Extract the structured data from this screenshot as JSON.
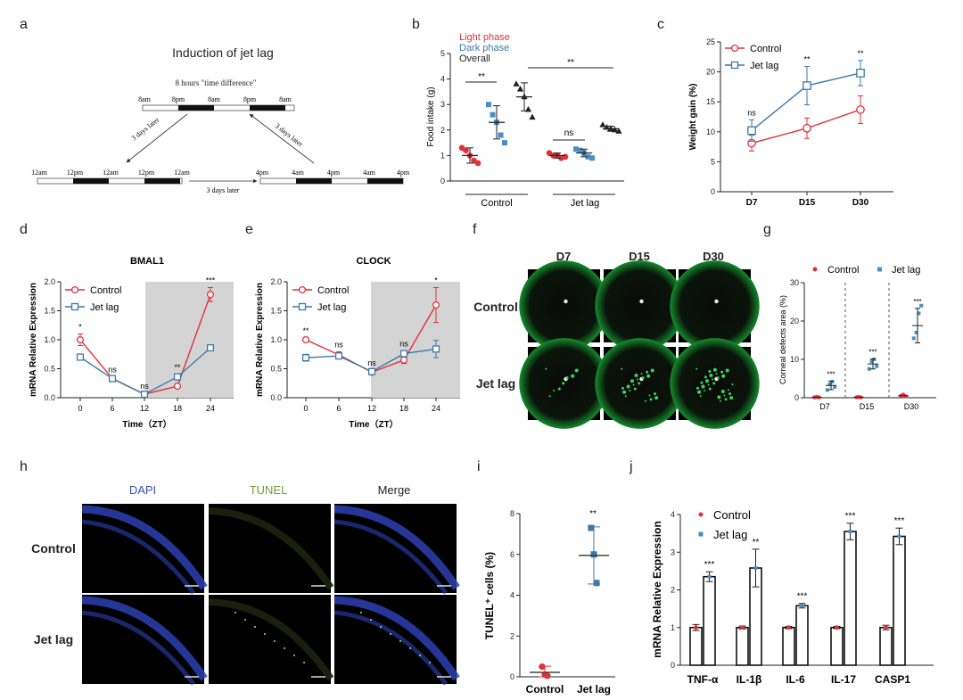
{
  "colors": {
    "control": "#e0303a",
    "jetlag": "#3d79a6",
    "blue_pt": "#4a8fc0",
    "overall": "#222222",
    "shade": "#d4d4d4",
    "dapi": "#3850b8",
    "tunel_green": "#8a9a3a",
    "micro_bg": "#0b0b0b",
    "cornea_green": "#1fa03a"
  },
  "panel_letters": [
    "a",
    "b",
    "c",
    "d",
    "e",
    "f",
    "g",
    "h",
    "i",
    "j"
  ],
  "panel_a": {
    "title": "Induction of jet lag",
    "diff_label": "8 hours \"time difference\"",
    "top_ticks": [
      "8am",
      "8pm",
      "8am",
      "8pm",
      "8am"
    ],
    "left_ticks": [
      "12am",
      "12pm",
      "12am",
      "12pm",
      "12am"
    ],
    "right_ticks": [
      "4pm",
      "4am",
      "4pm",
      "4am",
      "4pm"
    ],
    "later_left": "3 days later",
    "later_right": "3 days later",
    "later_bottom": "3 days later"
  },
  "chart_data": [
    {
      "id": "b",
      "type": "scatter",
      "ylabel": "Food intake (g)",
      "ylim": [
        0,
        5
      ],
      "yticks": [
        "0",
        "1",
        "2",
        "3",
        "4",
        "5"
      ],
      "legend": [
        "Light phase",
        "Dark phase",
        "Overall"
      ],
      "groups": [
        "Control",
        "Jet lag"
      ],
      "series": [
        {
          "name": "Control Light phase",
          "mean": 1.0,
          "sd": 0.3,
          "points": [
            1.3,
            1.2,
            1.0,
            0.8,
            0.7
          ]
        },
        {
          "name": "Control Dark phase",
          "mean": 2.3,
          "sd": 0.65,
          "points": [
            3.0,
            2.6,
            2.3,
            1.8,
            1.5
          ]
        },
        {
          "name": "Control Overall",
          "mean": 3.3,
          "sd": 0.55,
          "points": [
            3.8,
            3.6,
            3.3,
            2.8,
            2.5
          ]
        },
        {
          "name": "Jet lag Light phase",
          "mean": 1.0,
          "sd": 0.1,
          "points": [
            1.1,
            1.0,
            1.0,
            0.9,
            0.95
          ]
        },
        {
          "name": "Jet lag Dark phase",
          "mean": 1.1,
          "sd": 0.15,
          "points": [
            1.25,
            1.2,
            1.1,
            0.95,
            0.9
          ]
        },
        {
          "name": "Jet lag Overall",
          "mean": 2.05,
          "sd": 0.1,
          "points": [
            2.2,
            2.1,
            2.05,
            2.0,
            1.95
          ]
        }
      ],
      "annotations": [
        "**",
        "**",
        "ns"
      ]
    },
    {
      "id": "c",
      "type": "line",
      "ylabel": "Weight gain (%)",
      "ylim": [
        0,
        25
      ],
      "yticks": [
        "0",
        "5",
        "10",
        "15",
        "20",
        "25"
      ],
      "categories": [
        "D7",
        "D15",
        "D30"
      ],
      "series": [
        {
          "name": "Control",
          "values": [
            8.1,
            10.6,
            13.7
          ],
          "sd": [
            1.3,
            1.7,
            2.3
          ]
        },
        {
          "name": "Jet lag",
          "values": [
            10.2,
            17.7,
            19.8
          ],
          "sd": [
            1.8,
            3.2,
            2.1
          ]
        }
      ],
      "annotations": [
        "ns",
        "**",
        "**"
      ]
    },
    {
      "id": "d",
      "type": "line",
      "title": "BMAL1",
      "xlabel": "Time（ZT）",
      "ylabel": "mRNA Relative Expression",
      "ylim": [
        0,
        2.0
      ],
      "yticks": [
        "0.0",
        "0.5",
        "1.0",
        "1.5",
        "2.0"
      ],
      "x": [
        0,
        6,
        12,
        18,
        24
      ],
      "xticks": [
        "0",
        "6",
        "12",
        "18",
        "24"
      ],
      "series": [
        {
          "name": "Control",
          "values": [
            1.0,
            0.33,
            0.06,
            0.2,
            1.78
          ],
          "sd": [
            0.1,
            0.03,
            0.02,
            0.03,
            0.12
          ]
        },
        {
          "name": "Jet lag",
          "values": [
            0.7,
            0.33,
            0.06,
            0.36,
            0.86
          ],
          "sd": [
            0.04,
            0.03,
            0.02,
            0.04,
            0.04
          ]
        }
      ],
      "annotations": [
        "*",
        "ns",
        "ns",
        "**",
        "***"
      ]
    },
    {
      "id": "e",
      "type": "line",
      "title": "CLOCK",
      "xlabel": "Time（ZT）",
      "ylabel": "mRNA Relative Expression",
      "ylim": [
        0,
        2.0
      ],
      "yticks": [
        "0.0",
        "0.5",
        "1.0",
        "1.5",
        "2.0"
      ],
      "x": [
        0,
        6,
        12,
        18,
        24
      ],
      "xticks": [
        "0",
        "6",
        "12",
        "18",
        "24"
      ],
      "series": [
        {
          "name": "Control",
          "values": [
            1.0,
            0.74,
            0.44,
            0.65,
            1.6
          ],
          "sd": [
            0.03,
            0.05,
            0.03,
            0.06,
            0.3
          ]
        },
        {
          "name": "Jet lag",
          "values": [
            0.69,
            0.72,
            0.45,
            0.76,
            0.84
          ],
          "sd": [
            0.06,
            0.05,
            0.03,
            0.05,
            0.15
          ]
        }
      ],
      "annotations": [
        "**",
        "ns",
        "ns",
        "ns",
        "*"
      ]
    },
    {
      "id": "g",
      "type": "scatter",
      "ylabel": "Corneal defects area (%)",
      "ylim": [
        0,
        30
      ],
      "yticks": [
        "0",
        "10",
        "20",
        "30"
      ],
      "categories": [
        "D7",
        "D15",
        "D30"
      ],
      "series": [
        {
          "name": "Control",
          "means": [
            0.1,
            0.1,
            0.5
          ],
          "points": [
            [
              0.1,
              0.2,
              0.1
            ],
            [
              0.1,
              0.2,
              0.1
            ],
            [
              0.5,
              0.8,
              0.4
            ]
          ]
        },
        {
          "name": "Jet lag",
          "means": [
            3.2,
            8.8,
            18.8
          ],
          "sd": [
            1.1,
            1.3,
            4.5
          ],
          "points": [
            [
              2.0,
              3.5,
              4.2,
              2.8
            ],
            [
              7.5,
              9.5,
              10.0,
              8.2
            ],
            [
              15.5,
              17.0,
              22.0,
              24.0
            ]
          ]
        }
      ],
      "annotations": [
        "***",
        "***",
        "***"
      ]
    },
    {
      "id": "i",
      "type": "scatter",
      "ylabel": "TUNEL⁺ cells (%)",
      "ylim": [
        0,
        8
      ],
      "yticks": [
        "0",
        "2",
        "4",
        "6",
        "8"
      ],
      "categories": [
        "Control",
        "Jet lag"
      ],
      "series": [
        {
          "name": "Control",
          "mean": 0.22,
          "sd": 0.3,
          "points": [
            0.5,
            0.1,
            0.05
          ]
        },
        {
          "name": "Jet lag",
          "mean": 5.95,
          "sd": 1.4,
          "points": [
            7.3,
            6.0,
            4.6
          ]
        }
      ],
      "annotations": [
        "**"
      ]
    },
    {
      "id": "j",
      "type": "bar",
      "ylabel": "mRNA Relative Expression",
      "ylim": [
        0,
        4
      ],
      "yticks": [
        "0",
        "1",
        "2",
        "3",
        "4"
      ],
      "categories": [
        "TNF-α",
        "IL-1β",
        "IL-6",
        "IL-17",
        "CASP1"
      ],
      "series": [
        {
          "name": "Control",
          "values": [
            1.0,
            1.0,
            1.0,
            1.0,
            1.0
          ],
          "sd": [
            0.08,
            0.04,
            0.03,
            0.03,
            0.06
          ]
        },
        {
          "name": "Jet lag",
          "values": [
            2.35,
            2.58,
            1.58,
            3.55,
            3.42
          ],
          "sd": [
            0.13,
            0.5,
            0.06,
            0.22,
            0.22
          ]
        }
      ],
      "annotations": [
        "***",
        "**",
        "***",
        "***",
        "***"
      ]
    }
  ],
  "panel_f": {
    "cols": [
      "D7",
      "D15",
      "D30"
    ],
    "rows": [
      "Control",
      "Jet lag"
    ]
  },
  "panel_h": {
    "cols": [
      "DAPI",
      "TUNEL",
      "Merge"
    ],
    "rows": [
      "Control",
      "Jet lag"
    ]
  }
}
